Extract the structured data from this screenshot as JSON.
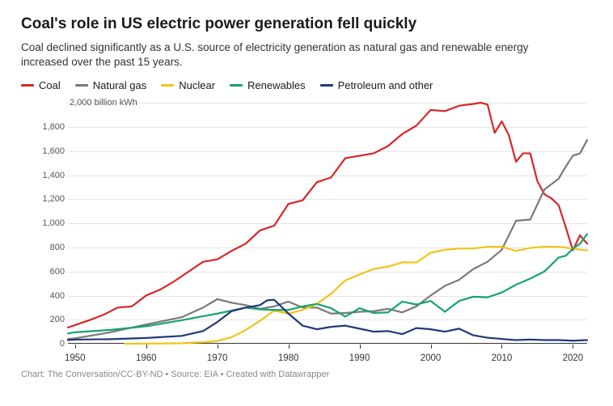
{
  "title": "Coal's role in US electric power generation fell quickly",
  "subtitle": "Coal declined significantly as a U.S. source of electricity generation as natural gas and renewable energy increased over the past 15 years.",
  "footer": "Chart: The Conversation/CC-BY-ND • Source: EIA • Created with Datawrapper",
  "chart": {
    "type": "line",
    "background_color": "#ffffff",
    "grid_color": "#e6e6e6",
    "axis_color": "#333333",
    "title_fontsize": 19,
    "subtitle_fontsize": 13.5,
    "label_fontsize": 11,
    "x": {
      "min": 1949,
      "max": 2022,
      "ticks": [
        1950,
        1960,
        1970,
        1980,
        1990,
        2000,
        2010,
        2020
      ]
    },
    "y": {
      "min": 0,
      "max": 2000,
      "ticks": [
        0,
        200,
        400,
        600,
        800,
        1000,
        1200,
        1400,
        1600,
        1800,
        2000
      ],
      "unit_label": "2,000 billion kWh",
      "tick_labels": [
        "0",
        "200",
        "400",
        "600",
        "800",
        "1,000",
        "1,200",
        "1,400",
        "1,600",
        "1,800",
        "2,000"
      ]
    },
    "line_width": 2.2,
    "series": [
      {
        "name": "Coal",
        "color": "#d62728",
        "x": [
          1949,
          1950,
          1952,
          1954,
          1956,
          1958,
          1960,
          1962,
          1964,
          1966,
          1968,
          1970,
          1972,
          1974,
          1976,
          1978,
          1980,
          1982,
          1984,
          1986,
          1988,
          1990,
          1992,
          1994,
          1996,
          1998,
          2000,
          2002,
          2004,
          2006,
          2007,
          2008,
          2009,
          2010,
          2011,
          2012,
          2013,
          2014,
          2015,
          2016,
          2017,
          2018,
          2019,
          2020,
          2021,
          2022
        ],
        "y": [
          135,
          155,
          195,
          240,
          300,
          310,
          400,
          450,
          520,
          600,
          680,
          700,
          770,
          830,
          940,
          980,
          1160,
          1190,
          1340,
          1380,
          1540,
          1560,
          1580,
          1640,
          1740,
          1810,
          1940,
          1930,
          1975,
          1990,
          2000,
          1985,
          1750,
          1845,
          1730,
          1510,
          1580,
          1580,
          1350,
          1240,
          1205,
          1150,
          965,
          775,
          900,
          830
        ]
      },
      {
        "name": "Natural gas",
        "color": "#7a7a7a",
        "x": [
          1949,
          1950,
          1955,
          1960,
          1965,
          1968,
          1970,
          1972,
          1974,
          1976,
          1978,
          1980,
          1982,
          1984,
          1986,
          1988,
          1990,
          1992,
          1994,
          1996,
          1998,
          2000,
          2002,
          2004,
          2006,
          2008,
          2010,
          2012,
          2014,
          2016,
          2018,
          2019,
          2020,
          2021,
          2022
        ],
        "y": [
          40,
          45,
          95,
          160,
          220,
          300,
          370,
          340,
          320,
          290,
          310,
          350,
          300,
          300,
          250,
          255,
          265,
          270,
          290,
          260,
          310,
          400,
          480,
          530,
          620,
          680,
          780,
          1020,
          1030,
          1280,
          1370,
          1470,
          1560,
          1580,
          1690
        ]
      },
      {
        "name": "Nuclear",
        "color": "#f0c419",
        "x": [
          1957,
          1960,
          1965,
          1968,
          1970,
          1972,
          1974,
          1976,
          1978,
          1980,
          1982,
          1984,
          1986,
          1988,
          1990,
          1992,
          1994,
          1996,
          1998,
          2000,
          2002,
          2004,
          2006,
          2008,
          2010,
          2012,
          2014,
          2016,
          2018,
          2020,
          2021,
          2022
        ],
        "y": [
          0,
          1,
          4,
          13,
          22,
          54,
          114,
          190,
          275,
          250,
          280,
          330,
          415,
          525,
          575,
          620,
          640,
          675,
          675,
          755,
          780,
          790,
          790,
          805,
          805,
          770,
          795,
          805,
          805,
          790,
          780,
          775
        ]
      },
      {
        "name": "Renewables",
        "color": "#18a36e",
        "x": [
          1949,
          1950,
          1955,
          1960,
          1965,
          1970,
          1972,
          1974,
          1976,
          1978,
          1980,
          1982,
          1984,
          1986,
          1988,
          1990,
          1992,
          1994,
          1996,
          1998,
          2000,
          2002,
          2004,
          2006,
          2008,
          2010,
          2012,
          2014,
          2016,
          2018,
          2019,
          2020,
          2021,
          2022
        ],
        "y": [
          85,
          95,
          115,
          145,
          195,
          250,
          275,
          300,
          285,
          280,
          280,
          310,
          330,
          295,
          225,
          295,
          255,
          260,
          350,
          325,
          355,
          265,
          355,
          390,
          385,
          425,
          490,
          540,
          600,
          715,
          730,
          790,
          830,
          910
        ]
      },
      {
        "name": "Petroleum and other",
        "color": "#1f3a7a",
        "x": [
          1949,
          1950,
          1955,
          1960,
          1965,
          1968,
          1970,
          1972,
          1974,
          1976,
          1977,
          1978,
          1980,
          1982,
          1984,
          1986,
          1988,
          1990,
          1992,
          1994,
          1996,
          1998,
          2000,
          2002,
          2004,
          2006,
          2008,
          2010,
          2012,
          2014,
          2016,
          2018,
          2020,
          2022
        ],
        "y": [
          30,
          34,
          38,
          48,
          65,
          105,
          180,
          270,
          300,
          320,
          360,
          365,
          250,
          150,
          120,
          140,
          150,
          125,
          100,
          105,
          80,
          130,
          120,
          100,
          125,
          70,
          50,
          40,
          30,
          35,
          30,
          30,
          25,
          30
        ]
      }
    ]
  }
}
